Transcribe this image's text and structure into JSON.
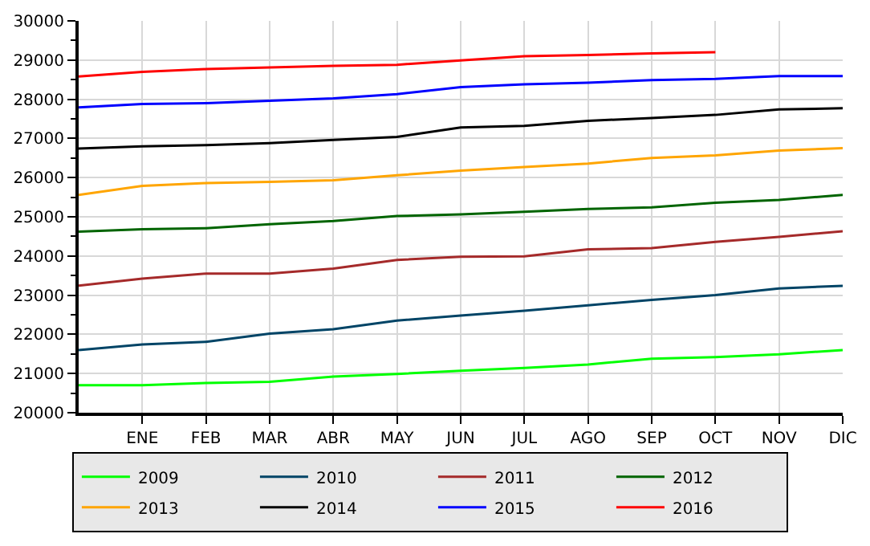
{
  "chart_data": {
    "type": "line",
    "categories": [
      null,
      "ENE",
      "FEB",
      "MAR",
      "ABR",
      "MAY",
      "JUN",
      "JUL",
      "AGO",
      "SEP",
      "OCT",
      "NOV",
      "DIC"
    ],
    "ylim": [
      20000,
      30000
    ],
    "yticks": [
      20000,
      {
        "value": 20500,
        "label": null
      },
      21000,
      {
        "value": 21500,
        "label": null
      },
      22000,
      {
        "value": 22500,
        "label": null
      },
      23000,
      {
        "value": 23500,
        "label": null
      },
      24000,
      {
        "value": 24500,
        "label": null
      },
      25000,
      {
        "value": 25500,
        "label": null
      },
      26000,
      {
        "value": 26500,
        "label": null
      },
      27000,
      {
        "value": 27500,
        "label": null
      },
      28000,
      {
        "value": 28500,
        "label": null
      },
      29000,
      {
        "value": 29500,
        "label": null
      },
      30000
    ],
    "grid": true,
    "legend": "bottom",
    "marker": "none",
    "line_style": "solid",
    "series": [
      {
        "name": "2009",
        "color": "#00ff00",
        "values": [
          20700,
          20700,
          20760,
          20790,
          20920,
          20990,
          21070,
          21140,
          21230,
          21380,
          21420,
          21490,
          21600
        ]
      },
      {
        "name": "2010",
        "color": "#004466",
        "values": [
          21600,
          21740,
          21810,
          22020,
          22130,
          22350,
          22480,
          22600,
          22740,
          22880,
          23000,
          23170,
          23240
        ]
      },
      {
        "name": "2011",
        "color": "#a52a2a",
        "values": [
          23240,
          23420,
          23550,
          23550,
          23680,
          23900,
          23980,
          23990,
          24170,
          24200,
          24360,
          24490,
          24630
        ]
      },
      {
        "name": "2012",
        "color": "#006400",
        "values": [
          24620,
          24680,
          24710,
          24810,
          24890,
          25020,
          25060,
          25130,
          25200,
          25240,
          25360,
          25430,
          25560
        ]
      },
      {
        "name": "2013",
        "color": "#ffa500",
        "values": [
          25560,
          25790,
          25860,
          25890,
          25930,
          26060,
          26180,
          26270,
          26360,
          26500,
          26570,
          26690,
          26750
        ]
      },
      {
        "name": "2014",
        "color": "#000000",
        "values": [
          26740,
          26800,
          26830,
          26880,
          26960,
          27040,
          27280,
          27320,
          27450,
          27520,
          27600,
          27740,
          27770
        ]
      },
      {
        "name": "2015",
        "color": "#0000ff",
        "values": [
          27790,
          27880,
          27900,
          27960,
          28020,
          28130,
          28310,
          28380,
          28420,
          28490,
          28520,
          28590,
          28590
        ]
      },
      {
        "name": "2016",
        "color": "#ff0000",
        "values": [
          28580,
          28700,
          28770,
          28810,
          28850,
          28880,
          28990,
          29100,
          29130,
          29170,
          29200,
          null,
          null
        ]
      }
    ]
  }
}
